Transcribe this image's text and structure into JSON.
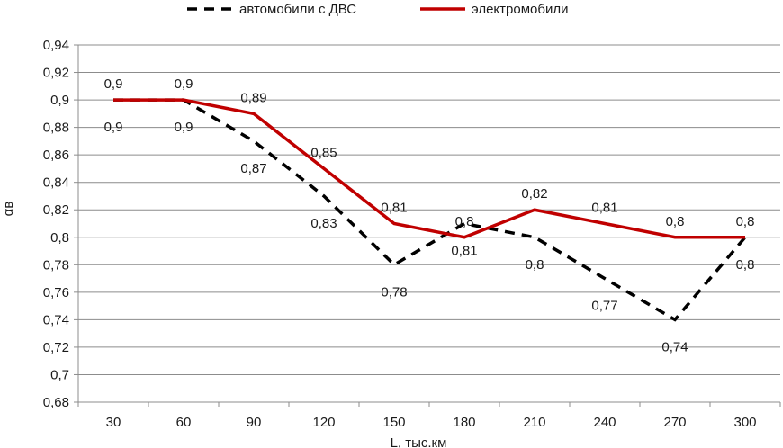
{
  "chart_data": {
    "type": "line",
    "title": "",
    "xlabel": "L, тыс.км",
    "ylabel": "αв",
    "x": [
      30,
      60,
      90,
      120,
      150,
      180,
      210,
      240,
      270,
      300
    ],
    "x_tick_labels": [
      "30",
      "60",
      "90",
      "120",
      "150",
      "180",
      "210",
      "240",
      "270",
      "300"
    ],
    "ylim": [
      0.68,
      0.94
    ],
    "y_tick_labels": [
      "0,68",
      "0,7",
      "0,72",
      "0,74",
      "0,76",
      "0,78",
      "0,8",
      "0,82",
      "0,84",
      "0,86",
      "0,88",
      "0,9",
      "0,92",
      "0,94"
    ],
    "grid": true,
    "legend_position": "top",
    "series": [
      {
        "name": "автомобили с ДВС",
        "style": "dashed",
        "color": "#000000",
        "values": [
          0.9,
          0.9,
          0.87,
          0.83,
          0.78,
          0.81,
          0.8,
          0.77,
          0.74,
          0.8
        ],
        "labels": [
          "0,9",
          "0,9",
          "0,87",
          "0,83",
          "0,78",
          "0,81",
          "0,8",
          "0,77",
          "0,74",
          "0,8"
        ]
      },
      {
        "name": "электромобили",
        "style": "solid",
        "color": "#c00000",
        "values": [
          0.9,
          0.9,
          0.89,
          0.85,
          0.81,
          0.8,
          0.82,
          0.81,
          0.8,
          0.8
        ],
        "labels": [
          "0,9",
          "0,9",
          "0,89",
          "0,85",
          "0,81",
          "0,8",
          "0,82",
          "0,81",
          "0,8",
          "0,8"
        ]
      }
    ]
  }
}
